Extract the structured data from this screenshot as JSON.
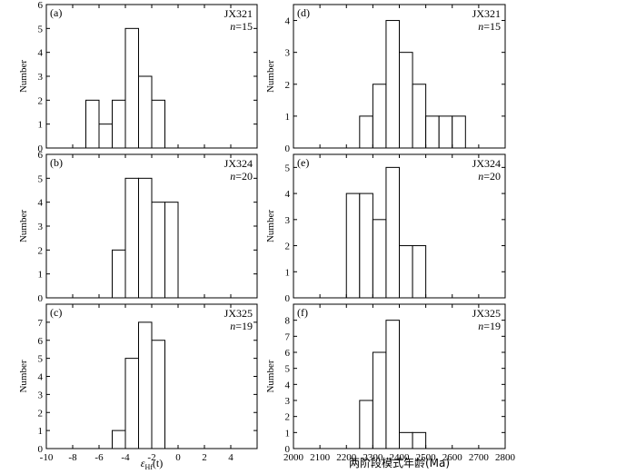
{
  "chart_data": [
    {
      "type": "bar",
      "panel": "left-top",
      "label": "(a)",
      "sample": "JX321",
      "n_label": "=15",
      "ylabel": "Number",
      "ylim": [
        0,
        6
      ],
      "yticks": [
        0,
        1,
        2,
        3,
        4,
        5,
        6
      ],
      "xlim": [
        -10,
        6
      ],
      "xticks": [
        -10,
        -8,
        -6,
        -4,
        -2,
        0,
        2,
        4
      ],
      "bins": [
        [
          -7,
          -6,
          2
        ],
        [
          -6,
          -5,
          1
        ],
        [
          -5,
          -4,
          2
        ],
        [
          -4,
          -3,
          5
        ],
        [
          -3,
          -2,
          3
        ],
        [
          -2,
          -1,
          2
        ]
      ]
    },
    {
      "type": "bar",
      "panel": "left-middle",
      "label": "(b)",
      "sample": "JX324",
      "n_label": "=20",
      "ylabel": "Number",
      "ylim": [
        0,
        6
      ],
      "yticks": [
        0,
        1,
        2,
        3,
        4,
        5,
        6
      ],
      "xlim": [
        -10,
        6
      ],
      "xticks": [
        -10,
        -8,
        -6,
        -4,
        -2,
        0,
        2,
        4
      ],
      "bins": [
        [
          -5,
          -4,
          2
        ],
        [
          -4,
          -3,
          5
        ],
        [
          -3,
          -2,
          5
        ],
        [
          -2,
          -1,
          4
        ],
        [
          -1,
          0,
          4
        ]
      ]
    },
    {
      "type": "bar",
      "panel": "left-bottom",
      "label": "(c)",
      "sample": "JX325",
      "n_label": "=19",
      "ylabel": "Number",
      "ylim": [
        0,
        8
      ],
      "yticks": [
        0,
        1,
        2,
        3,
        4,
        5,
        6,
        7
      ],
      "xlim": [
        -10,
        6
      ],
      "xticks": [
        -10,
        -8,
        -6,
        -4,
        -2,
        0,
        2,
        4
      ],
      "xlabel": "εHf(t)",
      "bins": [
        [
          -5,
          -4,
          1
        ],
        [
          -4,
          -3,
          5
        ],
        [
          -3,
          -2,
          7
        ],
        [
          -2,
          -1,
          6
        ]
      ]
    },
    {
      "type": "bar",
      "panel": "right-top",
      "label": "(d)",
      "sample": "JX321",
      "n_label": "=15",
      "ylabel": "Number",
      "ylim": [
        0,
        4.5
      ],
      "yticks": [
        0,
        1,
        2,
        3,
        4
      ],
      "xlim": [
        2000,
        2800
      ],
      "xticks": [
        2000,
        2100,
        2200,
        2300,
        2400,
        2500,
        2600,
        2700,
        2800
      ],
      "bins": [
        [
          2250,
          2300,
          1
        ],
        [
          2300,
          2350,
          2
        ],
        [
          2350,
          2400,
          4
        ],
        [
          2400,
          2450,
          3
        ],
        [
          2450,
          2500,
          2
        ],
        [
          2500,
          2550,
          1
        ],
        [
          2550,
          2600,
          1
        ],
        [
          2600,
          2650,
          1
        ]
      ]
    },
    {
      "type": "bar",
      "panel": "right-middle",
      "label": "(e)",
      "sample": "JX324",
      "n_label": "=20",
      "ylabel": "Number",
      "ylim": [
        0,
        5.5
      ],
      "yticks": [
        0,
        1,
        2,
        3,
        4,
        5
      ],
      "xlim": [
        2000,
        2800
      ],
      "xticks": [
        2000,
        2100,
        2200,
        2300,
        2400,
        2500,
        2600,
        2700,
        2800
      ],
      "bins": [
        [
          2200,
          2250,
          4
        ],
        [
          2250,
          2300,
          4
        ],
        [
          2300,
          2350,
          3
        ],
        [
          2350,
          2400,
          5
        ],
        [
          2400,
          2450,
          2
        ],
        [
          2450,
          2500,
          2
        ]
      ]
    },
    {
      "type": "bar",
      "panel": "right-bottom",
      "label": "(f)",
      "sample": "JX325",
      "n_label": "=19",
      "ylabel": "Number",
      "ylim": [
        0,
        9
      ],
      "yticks": [
        0,
        1,
        2,
        3,
        4,
        5,
        6,
        7,
        8
      ],
      "xlim": [
        2000,
        2800
      ],
      "xticks": [
        2000,
        2100,
        2200,
        2300,
        2400,
        2500,
        2600,
        2700,
        2800
      ],
      "xlabel": "两阶段模式年龄(Ma)",
      "bins": [
        [
          2250,
          2300,
          3
        ],
        [
          2300,
          2350,
          6
        ],
        [
          2350,
          2400,
          8
        ],
        [
          2400,
          2450,
          1
        ],
        [
          2450,
          2500,
          1
        ]
      ]
    }
  ],
  "labels": {
    "n_letter": "n",
    "eps_sym": "ε",
    "eps_sub": "Hf",
    "eps_arg": "(t)"
  }
}
